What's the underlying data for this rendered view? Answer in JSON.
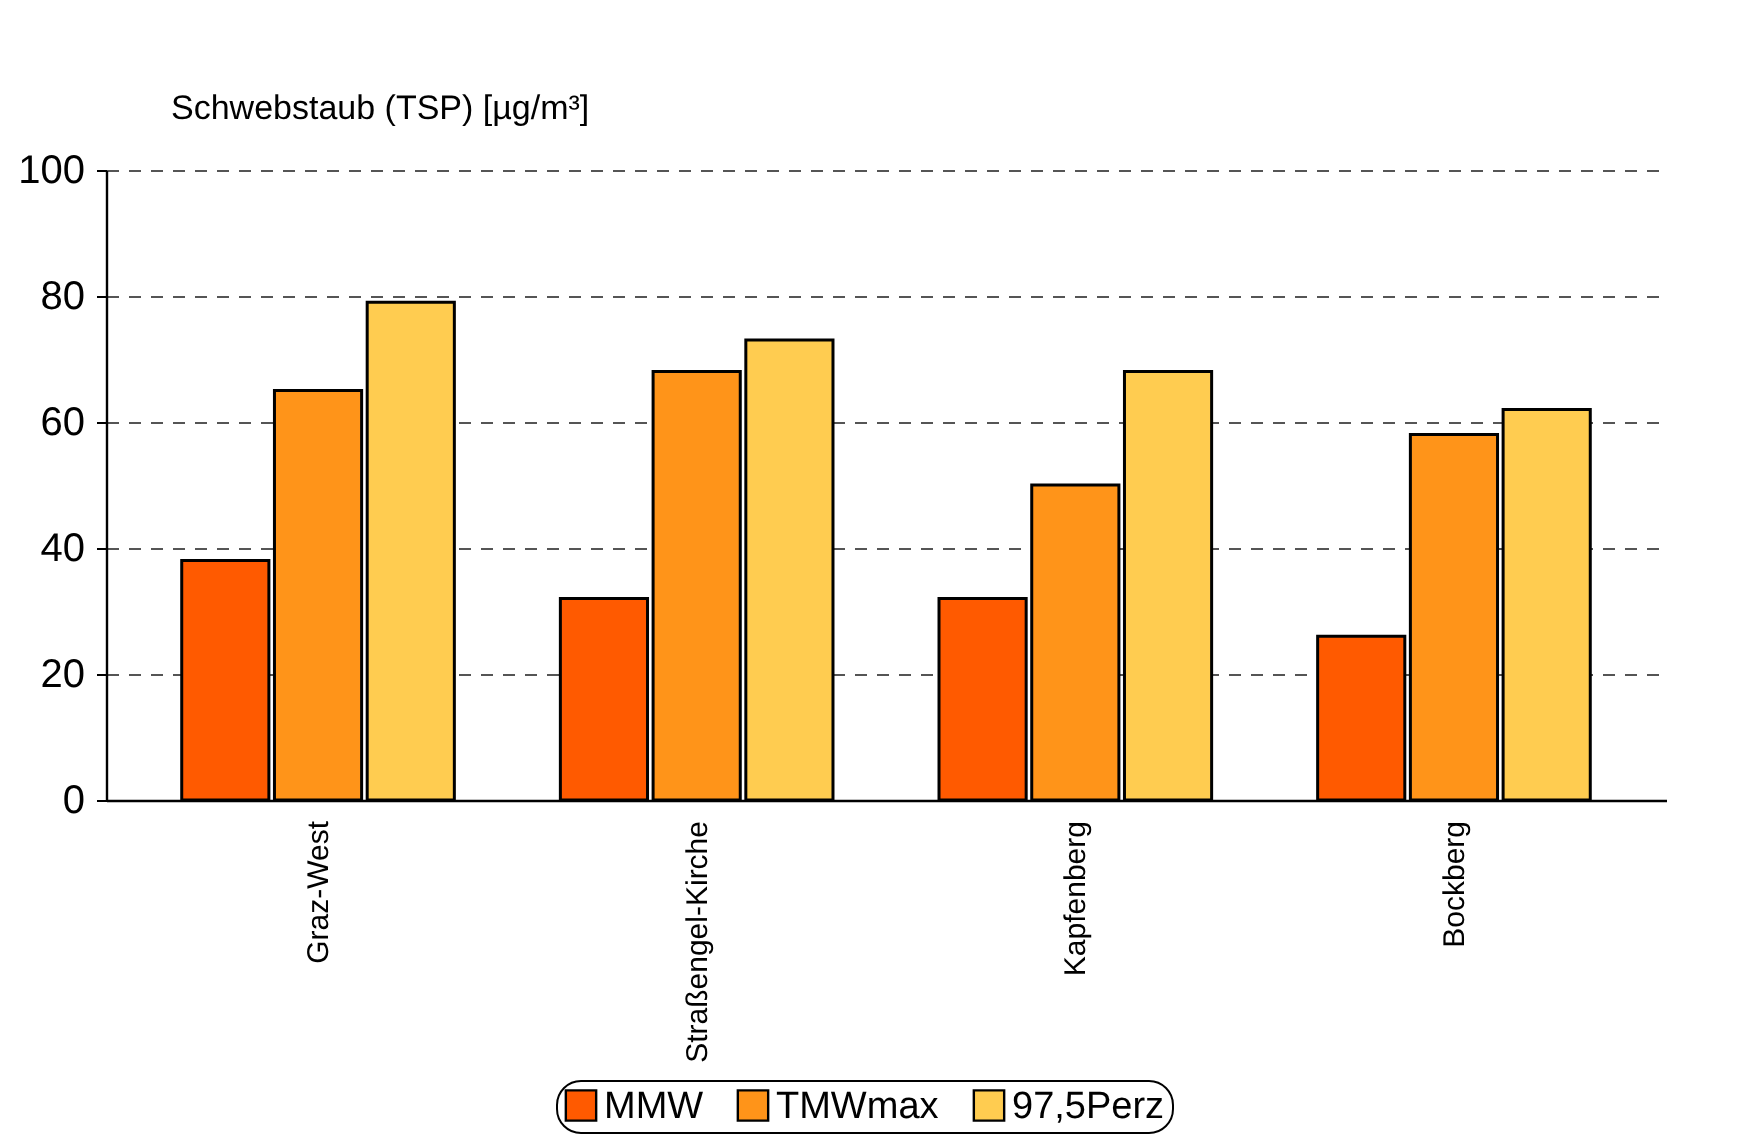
{
  "chart_data": {
    "type": "bar",
    "ylabel": "Schwebstaub (TSP) [µg/m³]",
    "categories": [
      "Graz-West",
      "Straßengel-Kirche",
      "Kapfenberg",
      "Bockberg"
    ],
    "series": [
      {
        "name": "MMW",
        "color": "#ff5a00",
        "values": [
          38,
          32,
          32,
          26
        ]
      },
      {
        "name": "TMWmax",
        "color": "#ff9419",
        "values": [
          65,
          68,
          50,
          58
        ]
      },
      {
        "name": "97,5Perz",
        "color": "#ffcc50",
        "values": [
          79,
          73,
          68,
          62
        ]
      }
    ],
    "ylim": [
      0,
      100
    ],
    "yticks": [
      0,
      20,
      40,
      60,
      80,
      100
    ],
    "grid": "y",
    "legend": "bottom"
  }
}
